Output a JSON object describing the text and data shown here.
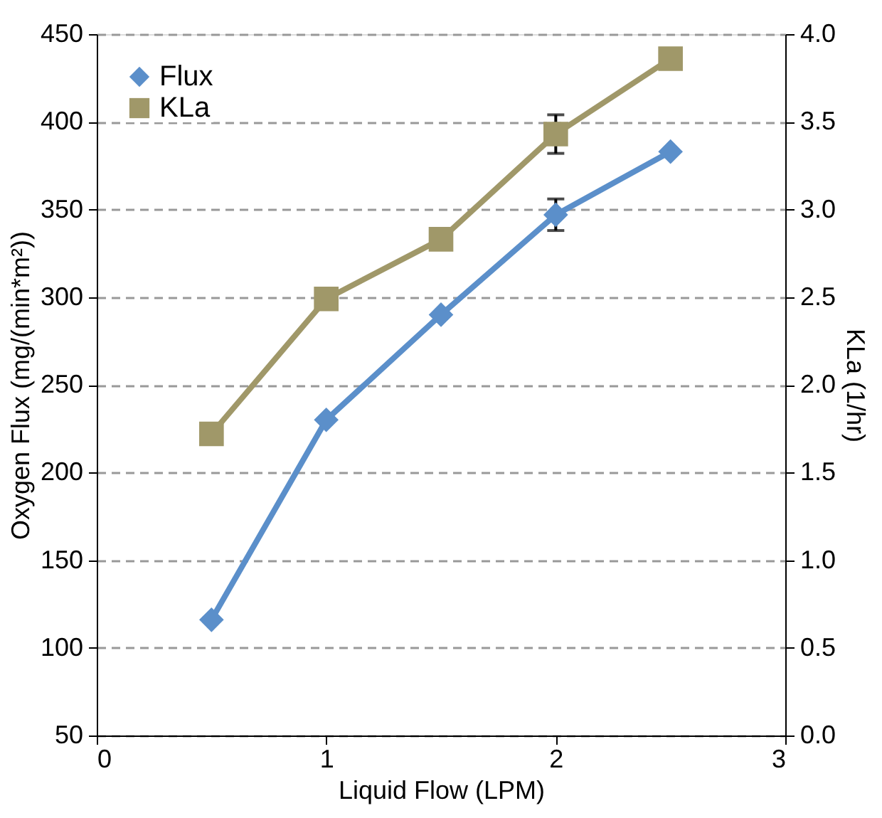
{
  "chart_data": {
    "type": "line",
    "xlabel": "Liquid Flow (LPM)",
    "ylabel": "Oxygen Flux (mg/(min*m²))",
    "y2label": "KLa (1/hr)",
    "x": [
      0.5,
      1,
      1.5,
      2,
      2.5
    ],
    "series": [
      {
        "name": "Flux",
        "color": "#5b8fca",
        "marker": "diamond",
        "values": [
          116,
          230,
          290,
          347,
          383
        ],
        "errors": [
          null,
          null,
          null,
          9,
          null
        ]
      },
      {
        "name": "KLa",
        "color": "#a09869",
        "marker": "square",
        "axis": "y2",
        "values": [
          1.72,
          2.49,
          2.83,
          3.43,
          3.86
        ],
        "errors": [
          null,
          null,
          null,
          0.11,
          null
        ]
      }
    ],
    "xlim": [
      0,
      3
    ],
    "xticks": [
      0,
      1,
      2,
      3
    ],
    "ylim": [
      50,
      450
    ],
    "yticks": [
      50,
      100,
      150,
      200,
      250,
      300,
      350,
      400,
      450
    ],
    "y2lim": [
      0,
      4
    ],
    "y2ticks": [
      {
        "value": 0,
        "label": "0.0"
      },
      {
        "value": 0.5,
        "label": "0.5"
      },
      {
        "value": 1,
        "label": "1.0"
      },
      {
        "value": 1.5,
        "label": "1.5"
      },
      {
        "value": 2,
        "label": "2.0"
      },
      {
        "value": 2.5,
        "label": "2.5"
      },
      {
        "value": 3,
        "label": "3.0"
      },
      {
        "value": 3.5,
        "label": "3.5"
      },
      {
        "value": 4,
        "label": "4.0"
      }
    ],
    "grid": "y",
    "legend": "top left",
    "line_style": "solid"
  }
}
